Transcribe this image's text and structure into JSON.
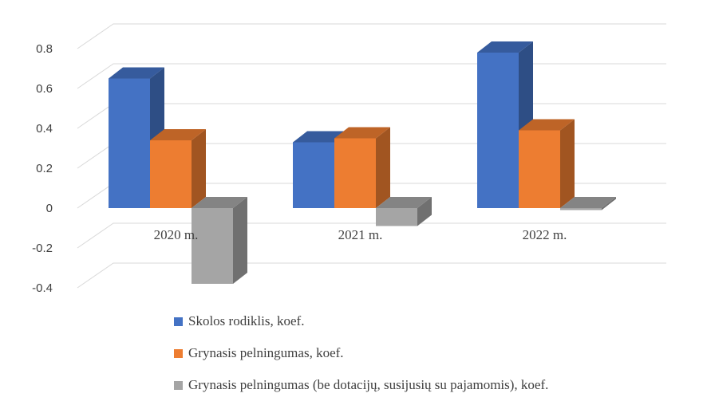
{
  "chart_data": {
    "type": "bar",
    "title": "",
    "xlabel": "",
    "ylabel": "",
    "categories": [
      "2020 m.",
      "2021 m.",
      "2022 m."
    ],
    "ylim": [
      -0.4,
      0.8
    ],
    "yticks": [
      -0.4,
      -0.2,
      0,
      0.2,
      0.4,
      0.6,
      0.8
    ],
    "ytick_labels": [
      "-0.4",
      "-0.2",
      "0",
      "0.2",
      "0.4",
      "0.6",
      "0.8"
    ],
    "grid": true,
    "three_d": true,
    "legend_position": "bottom",
    "series": [
      {
        "name": "Skolos rodiklis, koef.",
        "values": [
          0.65,
          0.33,
          0.78
        ],
        "color": "#4472C4"
      },
      {
        "name": "Grynasis pelningumas, koef.",
        "values": [
          0.34,
          0.35,
          0.39
        ],
        "color": "#ED7D31"
      },
      {
        "name": "Grynasis pelningumas (be dotacijų, susijusių su pajamomis), koef.",
        "values": [
          -0.38,
          -0.09,
          -0.01
        ],
        "color": "#A5A5A5"
      }
    ]
  }
}
